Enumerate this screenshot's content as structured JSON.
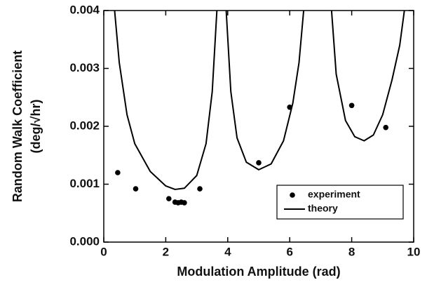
{
  "chart_data": {
    "type": "scatter",
    "xlabel": "Modulation Amplitude  (rad)",
    "ylabel": [
      "Random Walk Coefficient",
      "(deg/√hr)"
    ],
    "xlim": [
      0,
      10
    ],
    "xticks": [
      0,
      2,
      4,
      6,
      8,
      10
    ],
    "ylim": [
      0,
      0.004
    ],
    "yticks": [
      {
        "value": 0,
        "label": "0.000"
      },
      0.001,
      0.002,
      0.003,
      0.004
    ],
    "legend": "lower right",
    "series": [
      {
        "name": "experiment",
        "type": "scatter",
        "color": "#000000",
        "x": [
          0.45,
          1.03,
          2.1,
          2.3,
          2.4,
          2.5,
          2.6,
          3.1,
          5.0,
          6.0,
          8.0,
          9.1
        ],
        "values": [
          0.0012,
          0.00092,
          0.00075,
          0.00069,
          0.00068,
          0.00069,
          0.00068,
          0.00092,
          0.00137,
          0.00233,
          0.00236,
          0.00198
        ]
      },
      {
        "name": "theory",
        "type": "line",
        "color": "#000000",
        "x": [
          0.35,
          0.5,
          0.75,
          1.0,
          1.5,
          2.0,
          2.3,
          2.6,
          3.0,
          3.3,
          3.5,
          3.65,
          3.8,
          3.95,
          4.1,
          4.3,
          4.6,
          5.0,
          5.4,
          5.8,
          6.1,
          6.3,
          6.45,
          6.9,
          7.35,
          7.5,
          7.8,
          8.1,
          8.4,
          8.7,
          9.0,
          9.3,
          9.55,
          9.7
        ],
        "values": [
          0.004,
          0.0031,
          0.0022,
          0.0017,
          0.00122,
          0.00097,
          0.00091,
          0.00093,
          0.00115,
          0.0017,
          0.0026,
          0.004,
          null,
          0.004,
          0.0026,
          0.0018,
          0.00138,
          0.00125,
          0.00135,
          0.00175,
          0.0024,
          0.0031,
          0.004,
          null,
          0.004,
          0.0029,
          0.0021,
          0.00182,
          0.00175,
          0.00185,
          0.0022,
          0.0028,
          0.0034,
          0.004
        ]
      }
    ]
  }
}
